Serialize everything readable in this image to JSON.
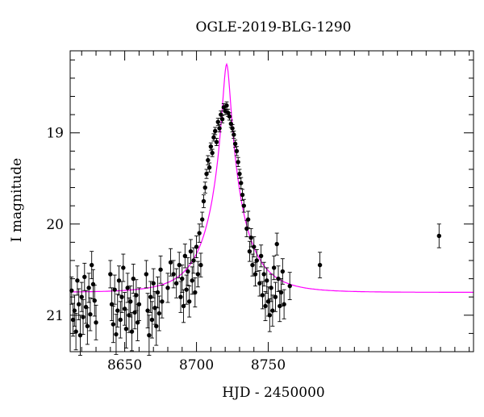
{
  "chart_data": {
    "type": "scatter",
    "title": "OGLE-2019-BLG-1290",
    "xlabel": "HJD - 2450000",
    "ylabel": "I magnitude",
    "xlim": [
      8612,
      8893
    ],
    "ylim": [
      21.4,
      18.1
    ],
    "y_inverted": true,
    "x_ticks": [
      8650,
      8700,
      8750
    ],
    "y_ticks": [
      19,
      20,
      21
    ],
    "grid": false,
    "legend": "none",
    "colors": {
      "points": "#000000",
      "model": "#ff00ff"
    },
    "model": {
      "t0": 8721,
      "u0": 0.1,
      "tE": 25,
      "baseline": 20.75
    },
    "points": [
      [
        8613,
        20.73,
        0.15
      ],
      [
        8614,
        21.05,
        0.18
      ],
      [
        8615,
        20.95,
        0.17
      ],
      [
        8616,
        21.18,
        0.2
      ],
      [
        8617,
        20.62,
        0.16
      ],
      [
        8618,
        20.88,
        0.17
      ],
      [
        8619,
        21.22,
        0.22
      ],
      [
        8620,
        20.8,
        0.16
      ],
      [
        8621,
        21.02,
        0.19
      ],
      [
        8622,
        20.58,
        0.15
      ],
      [
        8623,
        20.91,
        0.18
      ],
      [
        8624,
        21.12,
        0.2
      ],
      [
        8625,
        20.7,
        0.16
      ],
      [
        8626,
        20.99,
        0.18
      ],
      [
        8627,
        20.45,
        0.15
      ],
      [
        8628,
        20.66,
        0.16
      ],
      [
        8629,
        20.84,
        0.17
      ],
      [
        8630,
        21.08,
        0.19
      ],
      [
        8640,
        20.55,
        0.15
      ],
      [
        8641,
        20.88,
        0.18
      ],
      [
        8642,
        21.1,
        0.2
      ],
      [
        8643,
        20.72,
        0.16
      ],
      [
        8644,
        21.21,
        0.22
      ],
      [
        8645,
        20.95,
        0.18
      ],
      [
        8646,
        20.62,
        0.16
      ],
      [
        8647,
        21.05,
        0.2
      ],
      [
        8648,
        20.8,
        0.17
      ],
      [
        8649,
        20.48,
        0.15
      ],
      [
        8650,
        20.93,
        0.18
      ],
      [
        8651,
        21.15,
        0.21
      ],
      [
        8652,
        20.7,
        0.16
      ],
      [
        8653,
        21.0,
        0.19
      ],
      [
        8654,
        20.85,
        0.17
      ],
      [
        8655,
        21.18,
        0.21
      ],
      [
        8656,
        20.6,
        0.16
      ],
      [
        8657,
        20.97,
        0.18
      ],
      [
        8658,
        20.78,
        0.17
      ],
      [
        8659,
        21.08,
        0.2
      ],
      [
        8660,
        20.88,
        0.18
      ],
      [
        8665,
        20.55,
        0.15
      ],
      [
        8666,
        20.95,
        0.19
      ],
      [
        8667,
        21.22,
        0.22
      ],
      [
        8668,
        20.8,
        0.17
      ],
      [
        8669,
        21.05,
        0.2
      ],
      [
        8670,
        20.65,
        0.16
      ],
      [
        8671,
        20.92,
        0.18
      ],
      [
        8672,
        21.12,
        0.21
      ],
      [
        8673,
        20.75,
        0.17
      ],
      [
        8674,
        20.98,
        0.19
      ],
      [
        8675,
        20.5,
        0.15
      ],
      [
        8676,
        20.85,
        0.18
      ],
      [
        8680,
        20.7,
        0.16
      ],
      [
        8682,
        20.42,
        0.15
      ],
      [
        8684,
        20.55,
        0.15
      ],
      [
        8686,
        20.65,
        0.16
      ],
      [
        8688,
        20.45,
        0.14
      ],
      [
        8689,
        20.8,
        0.17
      ],
      [
        8690,
        20.6,
        0.15
      ],
      [
        8691,
        20.9,
        0.18
      ],
      [
        8692,
        20.35,
        0.13
      ],
      [
        8693,
        20.72,
        0.16
      ],
      [
        8694,
        20.52,
        0.15
      ],
      [
        8695,
        20.85,
        0.17
      ],
      [
        8696,
        20.3,
        0.13
      ],
      [
        8697,
        20.62,
        0.15
      ],
      [
        8698,
        20.4,
        0.14
      ],
      [
        8699,
        20.75,
        0.16
      ],
      [
        8700,
        20.25,
        0.12
      ],
      [
        8701,
        20.55,
        0.14
      ],
      [
        8702,
        20.1,
        0.1
      ],
      [
        8703,
        20.45,
        0.13
      ],
      [
        8704,
        19.95,
        0.08
      ],
      [
        8705,
        19.75,
        0.07
      ],
      [
        8706,
        19.6,
        0.06
      ],
      [
        8707,
        19.45,
        0.05
      ],
      [
        8708,
        19.3,
        0.05
      ],
      [
        8709,
        19.38,
        0.05
      ],
      [
        8710,
        19.15,
        0.04
      ],
      [
        8711,
        19.22,
        0.04
      ],
      [
        8712,
        19.05,
        0.04
      ],
      [
        8713,
        18.98,
        0.04
      ],
      [
        8714,
        19.1,
        0.04
      ],
      [
        8715,
        18.88,
        0.04
      ],
      [
        8716,
        18.95,
        0.04
      ],
      [
        8717,
        18.8,
        0.04
      ],
      [
        8718,
        18.85,
        0.04
      ],
      [
        8719,
        18.72,
        0.04
      ],
      [
        8720,
        18.76,
        0.04
      ],
      [
        8721,
        18.7,
        0.04
      ],
      [
        8722,
        18.78,
        0.04
      ],
      [
        8723,
        18.82,
        0.04
      ],
      [
        8724,
        18.9,
        0.04
      ],
      [
        8725,
        18.95,
        0.04
      ],
      [
        8726,
        19.02,
        0.04
      ],
      [
        8727,
        19.12,
        0.04
      ],
      [
        8728,
        19.2,
        0.05
      ],
      [
        8729,
        19.32,
        0.05
      ],
      [
        8730,
        19.45,
        0.05
      ],
      [
        8731,
        19.55,
        0.06
      ],
      [
        8732,
        19.68,
        0.06
      ],
      [
        8733,
        19.8,
        0.07
      ],
      [
        8735,
        20.05,
        0.09
      ],
      [
        8736,
        19.95,
        0.09
      ],
      [
        8737,
        20.3,
        0.11
      ],
      [
        8738,
        20.15,
        0.1
      ],
      [
        8739,
        20.45,
        0.12
      ],
      [
        8740,
        20.25,
        0.11
      ],
      [
        8741,
        20.55,
        0.13
      ],
      [
        8742,
        20.4,
        0.12
      ],
      [
        8744,
        20.65,
        0.14
      ],
      [
        8745,
        20.35,
        0.12
      ],
      [
        8746,
        20.78,
        0.15
      ],
      [
        8747,
        20.55,
        0.13
      ],
      [
        8748,
        20.9,
        0.16
      ],
      [
        8749,
        20.62,
        0.14
      ],
      [
        8750,
        20.85,
        0.16
      ],
      [
        8751,
        21.0,
        0.18
      ],
      [
        8752,
        20.7,
        0.15
      ],
      [
        8753,
        20.95,
        0.17
      ],
      [
        8754,
        20.48,
        0.13
      ],
      [
        8755,
        20.8,
        0.16
      ],
      [
        8756,
        20.22,
        0.12
      ],
      [
        8757,
        20.6,
        0.14
      ],
      [
        8758,
        20.9,
        0.17
      ],
      [
        8759,
        20.75,
        0.15
      ],
      [
        8760,
        20.52,
        0.14
      ],
      [
        8761,
        20.88,
        0.16
      ],
      [
        8765,
        20.68,
        0.15
      ],
      [
        8786,
        20.45,
        0.14
      ],
      [
        8869,
        20.13,
        0.13
      ]
    ]
  }
}
